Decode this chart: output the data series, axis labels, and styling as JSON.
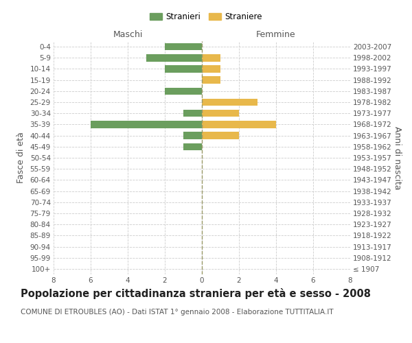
{
  "age_groups": [
    "100+",
    "95-99",
    "90-94",
    "85-89",
    "80-84",
    "75-79",
    "70-74",
    "65-69",
    "60-64",
    "55-59",
    "50-54",
    "45-49",
    "40-44",
    "35-39",
    "30-34",
    "25-29",
    "20-24",
    "15-19",
    "10-14",
    "5-9",
    "0-4"
  ],
  "birth_years": [
    "≤ 1907",
    "1908-1912",
    "1913-1917",
    "1918-1922",
    "1923-1927",
    "1928-1932",
    "1933-1937",
    "1938-1942",
    "1943-1947",
    "1948-1952",
    "1953-1957",
    "1958-1962",
    "1963-1967",
    "1968-1972",
    "1973-1977",
    "1978-1982",
    "1983-1987",
    "1988-1992",
    "1993-1997",
    "1998-2002",
    "2003-2007"
  ],
  "males": [
    0,
    0,
    0,
    0,
    0,
    0,
    0,
    0,
    0,
    0,
    0,
    1,
    1,
    6,
    1,
    0,
    2,
    0,
    2,
    3,
    2
  ],
  "females": [
    0,
    0,
    0,
    0,
    0,
    0,
    0,
    0,
    0,
    0,
    0,
    0,
    2,
    4,
    2,
    3,
    0,
    1,
    1,
    1,
    0
  ],
  "male_color": "#6B9E5E",
  "female_color": "#E8B84B",
  "xlim": 8,
  "title": "Popolazione per cittadinanza straniera per età e sesso - 2008",
  "subtitle": "COMUNE DI ETROUBLES (AO) - Dati ISTAT 1° gennaio 2008 - Elaborazione TUTTITALIA.IT",
  "ylabel_left": "Fasce di età",
  "ylabel_right": "Anni di nascita",
  "xlabel_left": "Maschi",
  "xlabel_right": "Femmine",
  "legend_male": "Stranieri",
  "legend_female": "Straniere",
  "background_color": "#ffffff",
  "grid_color": "#cccccc",
  "title_fontsize": 10.5,
  "subtitle_fontsize": 7.5,
  "tick_fontsize": 7.5,
  "label_fontsize": 9,
  "header_fontsize": 9
}
